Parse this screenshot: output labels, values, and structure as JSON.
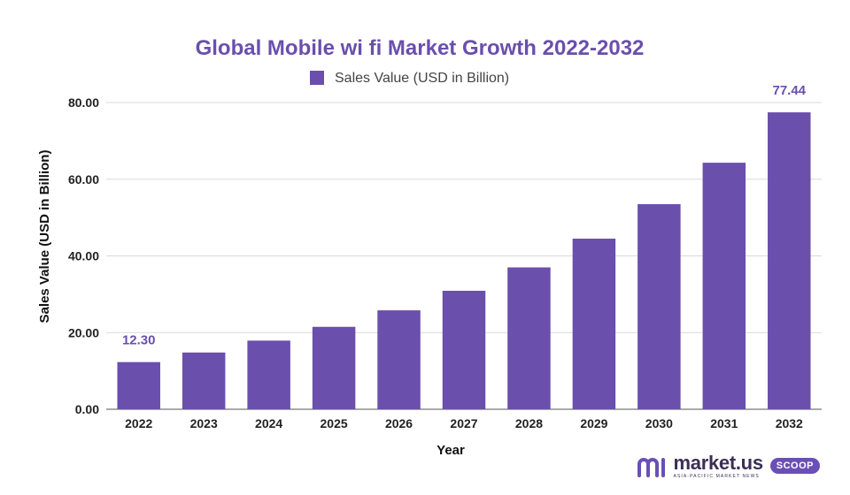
{
  "colors": {
    "bar": "#6a4fac",
    "title": "#6a4fac",
    "data_label": "#6a4fac",
    "logo_accent": "#6a4fb6",
    "logo_text": "#3a2f55"
  },
  "chart_data": {
    "type": "bar",
    "title": "Global Mobile wi fi Market Growth 2022-2032",
    "xlabel": "Year",
    "ylabel": "Sales Value (USD in Billion)",
    "legend_position": "top-center",
    "grid": true,
    "categories": [
      "2022",
      "2023",
      "2024",
      "2025",
      "2026",
      "2027",
      "2028",
      "2029",
      "2030",
      "2031",
      "2032"
    ],
    "series": [
      {
        "name": "Sales Value (USD in Billion)",
        "values": [
          12.3,
          14.8,
          17.9,
          21.5,
          25.8,
          30.9,
          37.0,
          44.5,
          53.5,
          64.3,
          77.44
        ]
      }
    ],
    "ylim": [
      0,
      80
    ],
    "yticks": [
      "0.00",
      "20.00",
      "40.00",
      "60.00",
      "80.00"
    ],
    "data_labels": [
      {
        "category": "2022",
        "text": "12.30"
      },
      {
        "category": "2032",
        "text": "77.44"
      }
    ]
  },
  "logo": {
    "brand": "market.us",
    "tagline": "ASIA-PACIFIC MARKET NEWS",
    "badge": "SCOOP",
    "icon": "market-us-logo-icon"
  }
}
